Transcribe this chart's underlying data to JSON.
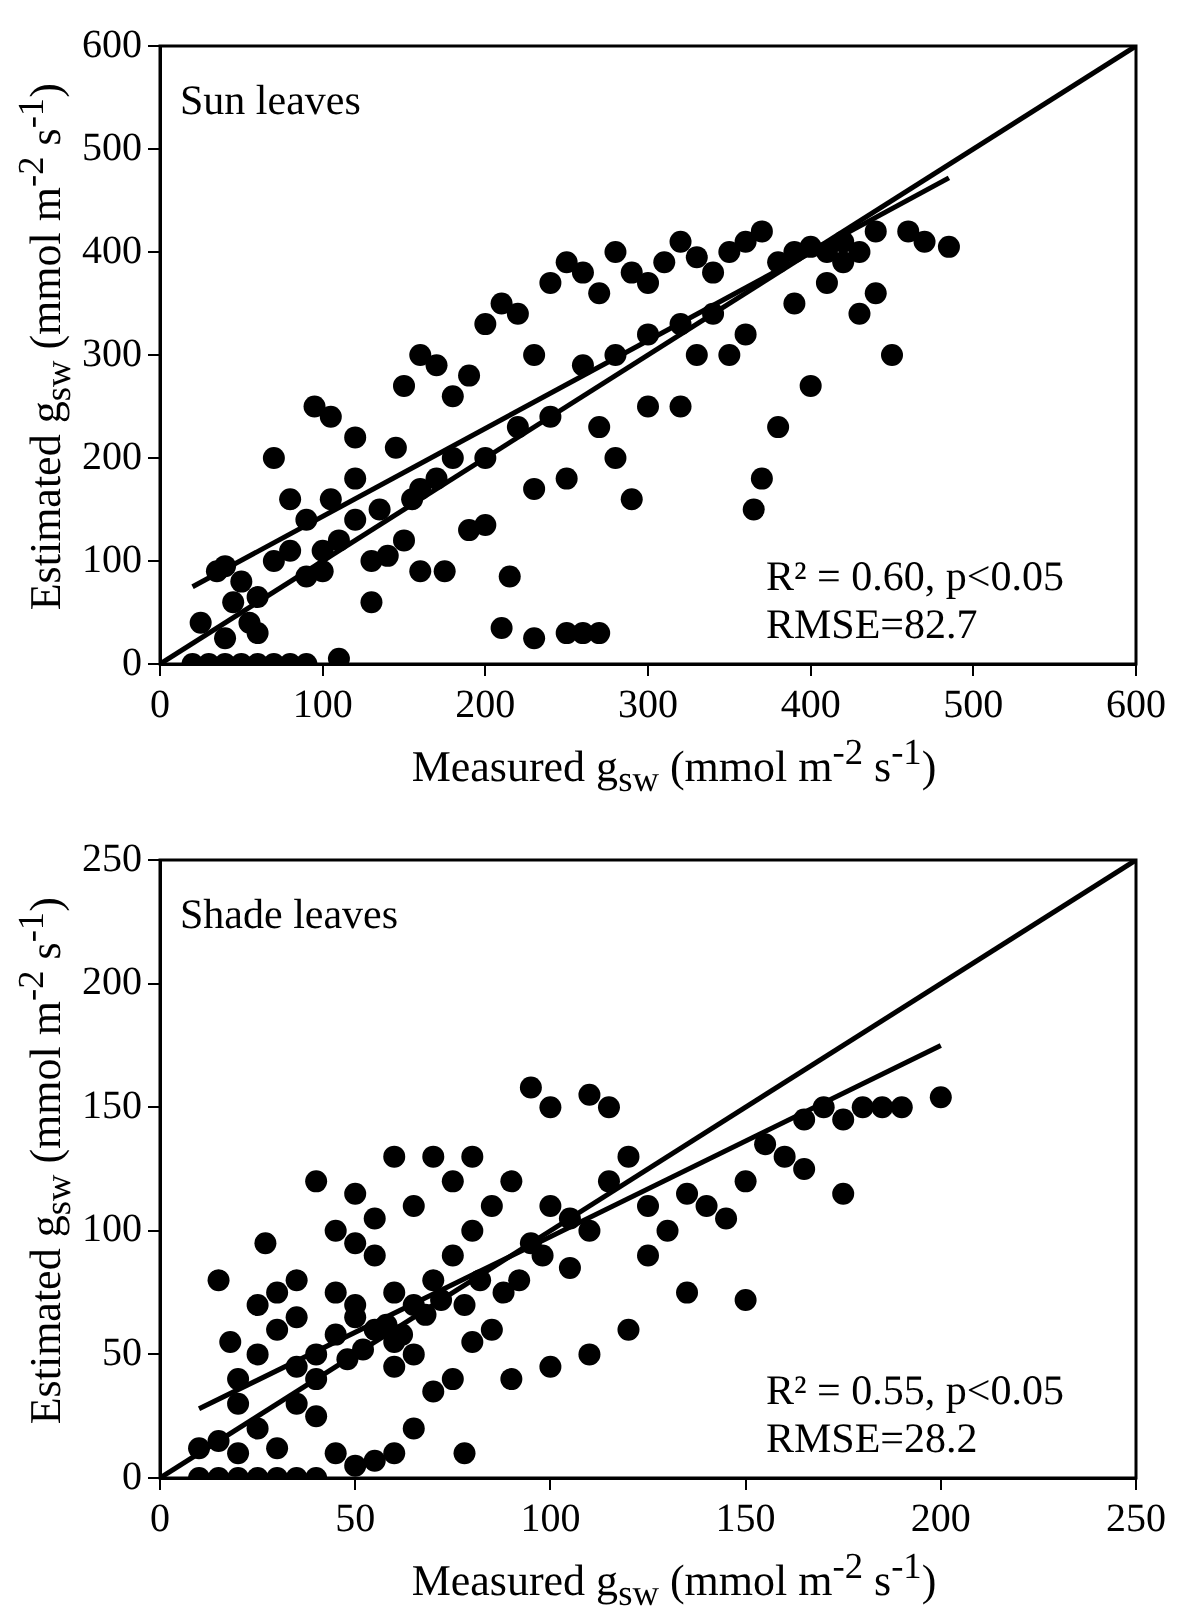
{
  "chart_data": [
    {
      "type": "scatter",
      "title": "Sun leaves",
      "xlabel": "Measured g$_{sw}$ (mmol m$^{-2}$ s$^{-1}$)",
      "ylabel": "Estimated g$_{sw}$ (mmol m$^{-2}$ s$^{-1}$)",
      "xlim": [
        0,
        600
      ],
      "xticks": [
        0,
        100,
        200,
        300,
        400,
        500,
        600
      ],
      "ylim": [
        0,
        600
      ],
      "yticks": [
        0,
        100,
        200,
        300,
        400,
        500,
        600
      ],
      "annotations": [
        "R² = 0.60, p<0.05",
        "RMSE=82.7"
      ],
      "series": [
        {
          "type": "scatter",
          "marker": "circle",
          "color": "#000000",
          "x": [
            20,
            30,
            40,
            50,
            60,
            70,
            80,
            90,
            110,
            60,
            25,
            40,
            45,
            55,
            35,
            40,
            50,
            60,
            70,
            80,
            90,
            100,
            90,
            80,
            70,
            95,
            105,
            120,
            135,
            130,
            145,
            150,
            155,
            160,
            170,
            180,
            190,
            200,
            210,
            220,
            230,
            240,
            250,
            260,
            270,
            280,
            290,
            300,
            310,
            320,
            330,
            340,
            350,
            360,
            370,
            380,
            390,
            400,
            410,
            420,
            430,
            440,
            460,
            470,
            485,
            450,
            440,
            430,
            400,
            380,
            370,
            365,
            330,
            320,
            300,
            290,
            280,
            270,
            260,
            250,
            230,
            210,
            215,
            200,
            190,
            180,
            170,
            160,
            150,
            140,
            120,
            110,
            100,
            175,
            160,
            200,
            220,
            240,
            260,
            280,
            300,
            320,
            340,
            350,
            360,
            390,
            410,
            420,
            230,
            250,
            270,
            120,
            130,
            105
          ],
          "values": [
            0,
            0,
            0,
            0,
            0,
            0,
            0,
            0,
            5,
            30,
            40,
            25,
            60,
            40,
            90,
            95,
            80,
            65,
            100,
            110,
            85,
            90,
            140,
            160,
            200,
            250,
            240,
            220,
            150,
            60,
            210,
            270,
            160,
            300,
            290,
            260,
            280,
            330,
            350,
            340,
            300,
            370,
            390,
            380,
            360,
            400,
            380,
            370,
            390,
            410,
            395,
            380,
            400,
            410,
            420,
            390,
            400,
            405,
            400,
            410,
            400,
            420,
            420,
            410,
            405,
            300,
            360,
            340,
            270,
            230,
            180,
            150,
            300,
            250,
            250,
            160,
            200,
            30,
            30,
            30,
            25,
            35,
            85,
            135,
            130,
            200,
            180,
            170,
            120,
            105,
            140,
            120,
            110,
            90,
            90,
            200,
            230,
            240,
            290,
            300,
            320,
            330,
            340,
            300,
            320,
            350,
            370,
            390,
            170,
            180,
            230,
            180,
            100,
            160
          ]
        },
        {
          "type": "line",
          "color": "#000000",
          "x": [
            0,
            600
          ],
          "values": [
            0,
            600
          ]
        },
        {
          "type": "line",
          "color": "#000000",
          "x": [
            20,
            485
          ],
          "values": [
            75,
            472
          ]
        }
      ]
    },
    {
      "type": "scatter",
      "title": "Shade leaves",
      "xlabel": "Measured g$_{sw}$ (mmol m$^{-2}$ s$^{-1}$)",
      "ylabel": "Estimated g$_{sw}$ (mmol m$^{-2}$ s$^{-1}$)",
      "xlim": [
        0,
        250
      ],
      "xticks": [
        0,
        50,
        100,
        150,
        200,
        250
      ],
      "ylim": [
        0,
        250
      ],
      "yticks": [
        0,
        50,
        100,
        150,
        200,
        250
      ],
      "annotations": [
        "R² = 0.55, p<0.05",
        "RMSE=28.2"
      ],
      "series": [
        {
          "type": "scatter",
          "marker": "circle",
          "color": "#000000",
          "x": [
            10,
            15,
            20,
            25,
            30,
            35,
            40,
            10,
            15,
            20,
            25,
            30,
            35,
            40,
            45,
            50,
            55,
            60,
            15,
            18,
            20,
            25,
            30,
            35,
            40,
            45,
            50,
            55,
            60,
            65,
            70,
            75,
            80,
            85,
            90,
            95,
            100,
            105,
            110,
            115,
            120,
            125,
            130,
            140,
            150,
            160,
            170,
            175,
            180,
            185,
            200,
            165,
            175,
            150,
            145,
            135,
            120,
            110,
            100,
            90,
            85,
            80,
            75,
            70,
            65,
            60,
            55,
            50,
            45,
            40,
            35,
            30,
            27,
            75,
            70,
            60,
            50,
            80,
            95,
            100,
            110,
            115,
            65,
            55,
            45,
            35,
            48,
            52,
            58,
            62,
            68,
            72,
            78,
            82,
            88,
            92,
            98,
            105,
            125,
            135,
            155,
            165,
            190,
            40,
            50,
            60,
            25,
            20,
            78,
            65
          ],
          "values": [
            0,
            0,
            0,
            0,
            0,
            0,
            0,
            12,
            15,
            10,
            20,
            12,
            30,
            25,
            10,
            5,
            7,
            10,
            80,
            55,
            40,
            70,
            60,
            65,
            50,
            75,
            70,
            60,
            55,
            70,
            80,
            90,
            100,
            110,
            120,
            95,
            110,
            85,
            100,
            120,
            130,
            90,
            100,
            110,
            120,
            130,
            150,
            145,
            150,
            150,
            154,
            125,
            115,
            72,
            105,
            75,
            60,
            50,
            45,
            40,
            60,
            55,
            40,
            35,
            50,
            45,
            90,
            95,
            100,
            120,
            80,
            75,
            95,
            120,
            130,
            130,
            115,
            130,
            158,
            150,
            155,
            150,
            110,
            105,
            58,
            45,
            48,
            52,
            62,
            58,
            66,
            72,
            70,
            80,
            75,
            80,
            90,
            105,
            110,
            115,
            135,
            145,
            150,
            40,
            65,
            75,
            50,
            30,
            10,
            20
          ]
        },
        {
          "type": "line",
          "color": "#000000",
          "x": [
            0,
            250
          ],
          "values": [
            0,
            250
          ]
        },
        {
          "type": "line",
          "color": "#000000",
          "x": [
            10,
            200
          ],
          "values": [
            28,
            175
          ]
        }
      ]
    }
  ]
}
